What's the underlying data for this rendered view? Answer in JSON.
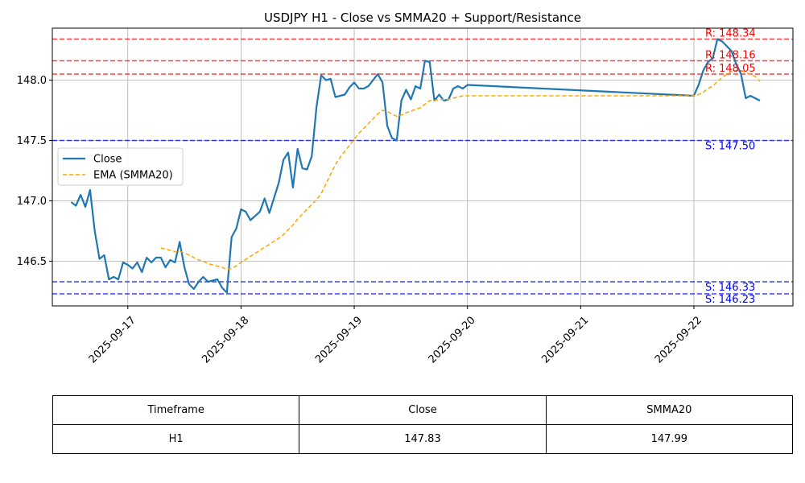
{
  "chart_data": {
    "type": "line",
    "title": "USDJPY H1 - Close vs SMMA20 + Support/Resistance",
    "xlabel": "",
    "ylabel": "",
    "x_range": [
      "2025-09-16 08:00",
      "2025-09-22 21:00"
    ],
    "ylim": [
      146.13,
      148.43
    ],
    "grid": true,
    "legend_position": "center-left",
    "x_ticks": [
      "2025-09-17",
      "2025-09-18",
      "2025-09-19",
      "2025-09-20",
      "2025-09-21",
      "2025-09-22"
    ],
    "y_ticks": [
      "146.5",
      "147.0",
      "147.5",
      "148.0"
    ],
    "series": [
      {
        "name": "Close",
        "style": "solid",
        "color": "#1f77b4",
        "points": [
          [
            "2025-09-16 12:00",
            146.99
          ],
          [
            "2025-09-16 13:00",
            146.96
          ],
          [
            "2025-09-16 14:00",
            147.05
          ],
          [
            "2025-09-16 15:00",
            146.95
          ],
          [
            "2025-09-16 16:00",
            147.09
          ],
          [
            "2025-09-16 17:00",
            146.75
          ],
          [
            "2025-09-16 18:00",
            146.52
          ],
          [
            "2025-09-16 19:00",
            146.55
          ],
          [
            "2025-09-16 20:00",
            146.35
          ],
          [
            "2025-09-16 21:00",
            146.37
          ],
          [
            "2025-09-16 22:00",
            146.35
          ],
          [
            "2025-09-16 23:00",
            146.49
          ],
          [
            "2025-09-17 00:00",
            146.47
          ],
          [
            "2025-09-17 01:00",
            146.44
          ],
          [
            "2025-09-17 02:00",
            146.49
          ],
          [
            "2025-09-17 03:00",
            146.41
          ],
          [
            "2025-09-17 04:00",
            146.53
          ],
          [
            "2025-09-17 05:00",
            146.49
          ],
          [
            "2025-09-17 06:00",
            146.53
          ],
          [
            "2025-09-17 07:00",
            146.53
          ],
          [
            "2025-09-17 08:00",
            146.45
          ],
          [
            "2025-09-17 09:00",
            146.51
          ],
          [
            "2025-09-17 10:00",
            146.49
          ],
          [
            "2025-09-17 11:00",
            146.66
          ],
          [
            "2025-09-17 12:00",
            146.45
          ],
          [
            "2025-09-17 13:00",
            146.31
          ],
          [
            "2025-09-17 14:00",
            146.27
          ],
          [
            "2025-09-17 15:00",
            146.33
          ],
          [
            "2025-09-17 16:00",
            146.37
          ],
          [
            "2025-09-17 17:00",
            146.33
          ],
          [
            "2025-09-17 18:00",
            146.34
          ],
          [
            "2025-09-17 19:00",
            146.35
          ],
          [
            "2025-09-17 20:00",
            146.28
          ],
          [
            "2025-09-17 21:00",
            146.24
          ],
          [
            "2025-09-17 22:00",
            146.7
          ],
          [
            "2025-09-17 23:00",
            146.77
          ],
          [
            "2025-09-18 00:00",
            146.93
          ],
          [
            "2025-09-18 01:00",
            146.91
          ],
          [
            "2025-09-18 02:00",
            146.84
          ],
          [
            "2025-09-18 04:00",
            146.91
          ],
          [
            "2025-09-18 05:00",
            147.02
          ],
          [
            "2025-09-18 06:00",
            146.9
          ],
          [
            "2025-09-18 08:00",
            147.15
          ],
          [
            "2025-09-18 09:00",
            147.34
          ],
          [
            "2025-09-18 10:00",
            147.4
          ],
          [
            "2025-09-18 11:00",
            147.11
          ],
          [
            "2025-09-18 12:00",
            147.43
          ],
          [
            "2025-09-18 13:00",
            147.27
          ],
          [
            "2025-09-18 14:00",
            147.26
          ],
          [
            "2025-09-18 15:00",
            147.37
          ],
          [
            "2025-09-18 16:00",
            147.78
          ],
          [
            "2025-09-18 17:00",
            148.04
          ],
          [
            "2025-09-18 18:00",
            148.0
          ],
          [
            "2025-09-18 19:00",
            148.01
          ],
          [
            "2025-09-18 20:00",
            147.86
          ],
          [
            "2025-09-18 22:00",
            147.88
          ],
          [
            "2025-09-18 23:00",
            147.94
          ],
          [
            "2025-09-19 00:00",
            147.98
          ],
          [
            "2025-09-19 01:00",
            147.93
          ],
          [
            "2025-09-19 02:00",
            147.93
          ],
          [
            "2025-09-19 03:00",
            147.95
          ],
          [
            "2025-09-19 05:00",
            148.05
          ],
          [
            "2025-09-19 06:00",
            147.98
          ],
          [
            "2025-09-19 07:00",
            147.62
          ],
          [
            "2025-09-19 08:00",
            147.52
          ],
          [
            "2025-09-19 09:00",
            147.5
          ],
          [
            "2025-09-19 10:00",
            147.83
          ],
          [
            "2025-09-19 11:00",
            147.92
          ],
          [
            "2025-09-19 12:00",
            147.84
          ],
          [
            "2025-09-19 13:00",
            147.95
          ],
          [
            "2025-09-19 14:00",
            147.93
          ],
          [
            "2025-09-19 15:00",
            148.16
          ],
          [
            "2025-09-19 16:00",
            148.15
          ],
          [
            "2025-09-19 17:00",
            147.83
          ],
          [
            "2025-09-19 18:00",
            147.88
          ],
          [
            "2025-09-19 19:00",
            147.83
          ],
          [
            "2025-09-19 20:00",
            147.84
          ],
          [
            "2025-09-19 21:00",
            147.93
          ],
          [
            "2025-09-19 22:00",
            147.95
          ],
          [
            "2025-09-19 23:00",
            147.93
          ],
          [
            "2025-09-20 00:00",
            147.96
          ],
          [
            "2025-09-22 00:00",
            147.87
          ],
          [
            "2025-09-22 01:00",
            147.96
          ],
          [
            "2025-09-22 02:00",
            148.08
          ],
          [
            "2025-09-22 03:00",
            148.15
          ],
          [
            "2025-09-22 04:00",
            148.18
          ],
          [
            "2025-09-22 05:00",
            148.34
          ],
          [
            "2025-09-22 06:00",
            148.32
          ],
          [
            "2025-09-22 07:00",
            148.28
          ],
          [
            "2025-09-22 08:00",
            148.24
          ],
          [
            "2025-09-22 09:00",
            148.13
          ],
          [
            "2025-09-22 10:00",
            148.05
          ],
          [
            "2025-09-22 11:00",
            147.85
          ],
          [
            "2025-09-22 12:00",
            147.87
          ],
          [
            "2025-09-22 13:00",
            147.85
          ],
          [
            "2025-09-22 14:00",
            147.83
          ]
        ]
      },
      {
        "name": "EMA (SMMA20)",
        "style": "dashed",
        "color": "#ffa500",
        "points": [
          [
            "2025-09-17 07:00",
            146.61
          ],
          [
            "2025-09-17 08:00",
            146.6
          ],
          [
            "2025-09-17 09:00",
            146.59
          ],
          [
            "2025-09-17 10:00",
            146.58
          ],
          [
            "2025-09-17 11:00",
            146.58
          ],
          [
            "2025-09-17 12:00",
            146.57
          ],
          [
            "2025-09-17 13:00",
            146.55
          ],
          [
            "2025-09-17 14:00",
            146.53
          ],
          [
            "2025-09-17 15:00",
            146.51
          ],
          [
            "2025-09-17 16:00",
            146.5
          ],
          [
            "2025-09-17 17:00",
            146.48
          ],
          [
            "2025-09-17 18:00",
            146.47
          ],
          [
            "2025-09-17 19:00",
            146.46
          ],
          [
            "2025-09-17 20:00",
            146.45
          ],
          [
            "2025-09-17 21:00",
            146.43
          ],
          [
            "2025-09-17 22:00",
            146.44
          ],
          [
            "2025-09-17 23:00",
            146.46
          ],
          [
            "2025-09-18 00:00",
            146.49
          ],
          [
            "2025-09-18 02:00",
            146.54
          ],
          [
            "2025-09-18 04:00",
            146.59
          ],
          [
            "2025-09-18 06:00",
            146.64
          ],
          [
            "2025-09-18 08:00",
            146.69
          ],
          [
            "2025-09-18 09:00",
            146.72
          ],
          [
            "2025-09-18 10:00",
            146.76
          ],
          [
            "2025-09-18 11:00",
            146.8
          ],
          [
            "2025-09-18 12:00",
            146.85
          ],
          [
            "2025-09-18 13:00",
            146.89
          ],
          [
            "2025-09-18 14:00",
            146.93
          ],
          [
            "2025-09-18 15:00",
            146.97
          ],
          [
            "2025-09-18 16:00",
            147.01
          ],
          [
            "2025-09-18 17:00",
            147.06
          ],
          [
            "2025-09-18 18:00",
            147.14
          ],
          [
            "2025-09-18 19:00",
            147.22
          ],
          [
            "2025-09-18 20:00",
            147.3
          ],
          [
            "2025-09-18 21:00",
            147.36
          ],
          [
            "2025-09-18 22:00",
            147.41
          ],
          [
            "2025-09-18 23:00",
            147.46
          ],
          [
            "2025-09-19 00:00",
            147.51
          ],
          [
            "2025-09-19 01:00",
            147.56
          ],
          [
            "2025-09-19 02:00",
            147.6
          ],
          [
            "2025-09-19 03:00",
            147.64
          ],
          [
            "2025-09-19 04:00",
            147.68
          ],
          [
            "2025-09-19 05:00",
            147.72
          ],
          [
            "2025-09-19 06:00",
            147.75
          ],
          [
            "2025-09-19 07:00",
            147.74
          ],
          [
            "2025-09-19 08:00",
            147.72
          ],
          [
            "2025-09-19 09:00",
            147.7
          ],
          [
            "2025-09-19 10:00",
            147.71
          ],
          [
            "2025-09-19 11:00",
            147.73
          ],
          [
            "2025-09-19 12:00",
            147.74
          ],
          [
            "2025-09-19 13:00",
            147.76
          ],
          [
            "2025-09-19 14:00",
            147.77
          ],
          [
            "2025-09-19 15:00",
            147.8
          ],
          [
            "2025-09-19 16:00",
            147.83
          ],
          [
            "2025-09-19 17:00",
            147.83
          ],
          [
            "2025-09-19 18:00",
            147.84
          ],
          [
            "2025-09-19 19:00",
            147.84
          ],
          [
            "2025-09-19 20:00",
            147.84
          ],
          [
            "2025-09-19 21:00",
            147.85
          ],
          [
            "2025-09-19 22:00",
            147.86
          ],
          [
            "2025-09-19 23:00",
            147.87
          ],
          [
            "2025-09-20 00:00",
            147.87
          ],
          [
            "2025-09-22 00:00",
            147.87
          ],
          [
            "2025-09-22 01:00",
            147.88
          ],
          [
            "2025-09-22 02:00",
            147.9
          ],
          [
            "2025-09-22 03:00",
            147.93
          ],
          [
            "2025-09-22 04:00",
            147.95
          ],
          [
            "2025-09-22 05:00",
            147.99
          ],
          [
            "2025-09-22 06:00",
            148.02
          ],
          [
            "2025-09-22 07:00",
            148.05
          ],
          [
            "2025-09-22 08:00",
            148.07
          ],
          [
            "2025-09-22 09:00",
            148.08
          ],
          [
            "2025-09-22 10:00",
            148.08
          ],
          [
            "2025-09-22 11:00",
            148.06
          ],
          [
            "2025-09-22 12:00",
            148.05
          ],
          [
            "2025-09-22 13:00",
            148.03
          ],
          [
            "2025-09-22 14:00",
            147.99
          ]
        ]
      }
    ],
    "levels": [
      {
        "kind": "resistance",
        "value": 148.34,
        "label": "R: 148.34",
        "color": "#ff0000"
      },
      {
        "kind": "resistance",
        "value": 148.16,
        "label": "R: 148.16",
        "color": "#ff0000"
      },
      {
        "kind": "resistance",
        "value": 148.05,
        "label": "R: 148.05",
        "color": "#ff0000"
      },
      {
        "kind": "support",
        "value": 147.5,
        "label": "S: 147.50",
        "color": "#0000ff"
      },
      {
        "kind": "support",
        "value": 146.33,
        "label": "S: 146.33",
        "color": "#0000ff"
      },
      {
        "kind": "support",
        "value": 146.23,
        "label": "S: 146.23",
        "color": "#0000ff"
      }
    ]
  },
  "table": {
    "headers": [
      "Timeframe",
      "Close",
      "SMMA20"
    ],
    "row": [
      "H1",
      "147.83",
      "147.99"
    ]
  }
}
